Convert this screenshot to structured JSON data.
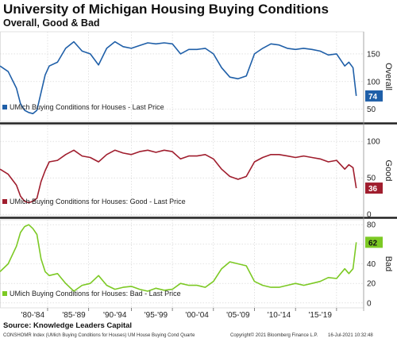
{
  "header": {
    "title": "University of Michigan Housing Buying Conditions",
    "subtitle": "Overall, Good & Bad"
  },
  "footer": {
    "source": "Source: Knowledge Leaders Capital",
    "index_text": "CONSHOMR Index (UMich Buying Conditions for Houses) UM House Buying Cond  Quarte",
    "copyright": "Copyright© 2021 Bloomberg Finance L.P.",
    "timestamp": "16-Jul-2021 10:32:48"
  },
  "chart_data": [
    {
      "type": "line",
      "panel": "overall",
      "axis_label": "Overall",
      "legend": "UMich Buying Conditions for Houses - Last Price",
      "color": "#1f5fa8",
      "last_value": "74",
      "yticks": [
        50,
        100,
        150
      ],
      "ylim": [
        28,
        190
      ],
      "x": [
        1978,
        1979,
        1980,
        1980.5,
        1981,
        1981.5,
        1982,
        1982.5,
        1983,
        1983.5,
        1984,
        1985,
        1986,
        1987,
        1988,
        1989,
        1990,
        1991,
        1992,
        1993,
        1994,
        1995,
        1996,
        1997,
        1998,
        1999,
        2000,
        2001,
        2002,
        2003,
        2004,
        2005,
        2006,
        2007,
        2008,
        2009,
        2010,
        2011,
        2012,
        2013,
        2014,
        2015,
        2016,
        2017,
        2018,
        2019,
        2020,
        2020.5,
        2021,
        2021.4
      ],
      "values": [
        128,
        118,
        88,
        60,
        48,
        44,
        42,
        48,
        80,
        112,
        128,
        135,
        160,
        172,
        155,
        150,
        130,
        160,
        172,
        163,
        160,
        165,
        170,
        168,
        170,
        168,
        150,
        158,
        158,
        160,
        150,
        125,
        108,
        105,
        110,
        150,
        160,
        168,
        166,
        160,
        158,
        160,
        158,
        155,
        148,
        150,
        128,
        135,
        125,
        74
      ]
    },
    {
      "type": "line",
      "panel": "good",
      "axis_label": "Good",
      "legend": "UMich Buying Conditions for Houses: Good - Last Price",
      "color": "#a01e2e",
      "last_value": "36",
      "yticks": [
        0,
        50,
        100
      ],
      "ylim": [
        -2,
        122
      ],
      "x": [
        1978,
        1979,
        1980,
        1980.5,
        1981,
        1981.5,
        1982,
        1982.5,
        1983,
        1983.5,
        1984,
        1985,
        1986,
        1987,
        1988,
        1989,
        1990,
        1991,
        1992,
        1993,
        1994,
        1995,
        1996,
        1997,
        1998,
        1999,
        2000,
        2001,
        2002,
        2003,
        2004,
        2005,
        2006,
        2007,
        2008,
        2009,
        2010,
        2011,
        2012,
        2013,
        2014,
        2015,
        2016,
        2017,
        2018,
        2019,
        2020,
        2020.5,
        2021,
        2021.4
      ],
      "values": [
        62,
        55,
        40,
        25,
        18,
        16,
        18,
        22,
        45,
        60,
        72,
        74,
        82,
        88,
        80,
        78,
        72,
        82,
        88,
        84,
        82,
        86,
        88,
        85,
        88,
        86,
        76,
        80,
        80,
        82,
        76,
        62,
        52,
        48,
        52,
        72,
        78,
        82,
        82,
        80,
        78,
        80,
        78,
        76,
        72,
        74,
        62,
        68,
        64,
        36
      ]
    },
    {
      "type": "line",
      "panel": "bad",
      "axis_label": "Bad",
      "legend": "UMich Buying Conditions for Houses: Bad - Last Price",
      "color": "#7cc924",
      "last_value": "62",
      "yticks": [
        0,
        20,
        40,
        60,
        80
      ],
      "ylim": [
        -5,
        85
      ],
      "x": [
        1978,
        1979,
        1980,
        1980.5,
        1981,
        1981.5,
        1982,
        1982.5,
        1983,
        1983.5,
        1984,
        1985,
        1986,
        1987,
        1988,
        1989,
        1990,
        1991,
        1992,
        1993,
        1994,
        1995,
        1996,
        1997,
        1998,
        1999,
        2000,
        2001,
        2002,
        2003,
        2004,
        2005,
        2006,
        2007,
        2008,
        2009,
        2010,
        2011,
        2012,
        2013,
        2014,
        2015,
        2016,
        2017,
        2018,
        2019,
        2020,
        2020.5,
        2021,
        2021.4
      ],
      "values": [
        32,
        40,
        58,
        72,
        78,
        80,
        76,
        70,
        45,
        32,
        28,
        30,
        20,
        12,
        18,
        20,
        28,
        18,
        14,
        16,
        17,
        14,
        12,
        15,
        13,
        14,
        20,
        18,
        18,
        16,
        22,
        35,
        42,
        40,
        38,
        22,
        18,
        16,
        16,
        18,
        20,
        18,
        20,
        22,
        26,
        25,
        35,
        30,
        35,
        62
      ]
    }
  ],
  "x_axis": {
    "ticks": [
      "'80-'84",
      "'85-'89",
      "'90-'94",
      "'95-'99",
      "'00-'04",
      "'05-'09",
      "'10-'14",
      "'15-'19"
    ]
  }
}
